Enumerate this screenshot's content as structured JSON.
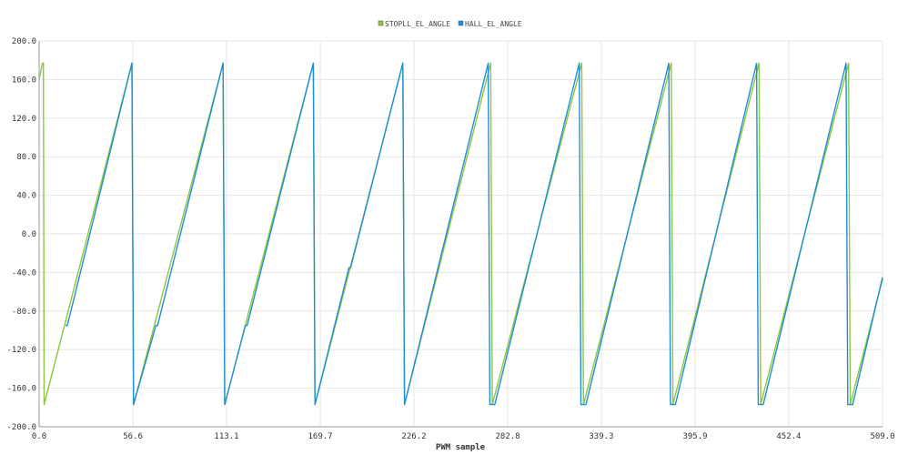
{
  "chart_data": {
    "type": "line",
    "xlabel": "PWM sample",
    "ylabel": "",
    "xlim": [
      0,
      509
    ],
    "ylim": [
      -200,
      200
    ],
    "grid": true,
    "legend_position": "top-center",
    "xticks": [
      0,
      56.6,
      113.1,
      169.7,
      226.2,
      282.8,
      339.3,
      395.9,
      452.4,
      509
    ],
    "xtick_labels": [
      "0.0",
      "56.6",
      "113.1",
      "169.7",
      "226.2",
      "282.8",
      "339.3",
      "395.9",
      "452.4",
      "509.0"
    ],
    "yticks": [
      200,
      160,
      120,
      80,
      40,
      0,
      -40,
      -80,
      -120,
      -160,
      -200
    ],
    "ytick_labels": [
      "200.0",
      "160.0",
      "120.0",
      "80.0",
      "40.0",
      "0.0",
      "-40.0",
      "-80.0",
      "-120.0",
      "-160.0",
      "-200.0"
    ],
    "series": [
      {
        "name": "STOPLL_EL_ANGLE",
        "color": "#8dc63f",
        "points": [
          [
            0,
            160
          ],
          [
            2,
            177
          ],
          [
            2.6,
            177
          ],
          [
            3,
            -177
          ],
          [
            56,
            177
          ],
          [
            57,
            -177
          ],
          [
            111,
            177
          ],
          [
            112,
            -177
          ],
          [
            165.5,
            177
          ],
          [
            166.5,
            -177
          ],
          [
            219.5,
            177
          ],
          [
            220.5,
            -177
          ],
          [
            272.5,
            177
          ],
          [
            273.5,
            -177
          ],
          [
            327.5,
            177
          ],
          [
            328.5,
            -177
          ],
          [
            381.5,
            177
          ],
          [
            382.5,
            -177
          ],
          [
            434.5,
            177
          ],
          [
            435.5,
            -177
          ],
          [
            488.5,
            177
          ],
          [
            489.5,
            -177
          ],
          [
            509,
            -47
          ]
        ]
      },
      {
        "name": "HALL_EL_ANGLE",
        "color": "#1f8fd8",
        "points": [
          [
            16,
            -95
          ],
          [
            17,
            -95
          ],
          [
            56,
            177
          ],
          [
            57,
            -177
          ],
          [
            70.5,
            -95
          ],
          [
            71.5,
            -95
          ],
          [
            111,
            177
          ],
          [
            112,
            -177
          ],
          [
            124.5,
            -95
          ],
          [
            125.5,
            -95
          ],
          [
            165.5,
            177
          ],
          [
            166.5,
            -177
          ],
          [
            187,
            -35
          ],
          [
            188,
            -35
          ],
          [
            219.5,
            177
          ],
          [
            220.5,
            -177
          ],
          [
            271,
            177
          ],
          [
            272,
            -177
          ],
          [
            275,
            -177
          ],
          [
            326,
            177
          ],
          [
            327,
            -177
          ],
          [
            330,
            -177
          ],
          [
            380,
            177
          ],
          [
            381,
            -177
          ],
          [
            384,
            -177
          ],
          [
            433,
            177
          ],
          [
            434,
            -177
          ],
          [
            437,
            -177
          ],
          [
            487,
            177
          ],
          [
            488,
            -177
          ],
          [
            491,
            -177
          ],
          [
            509,
            -45
          ]
        ]
      }
    ]
  }
}
